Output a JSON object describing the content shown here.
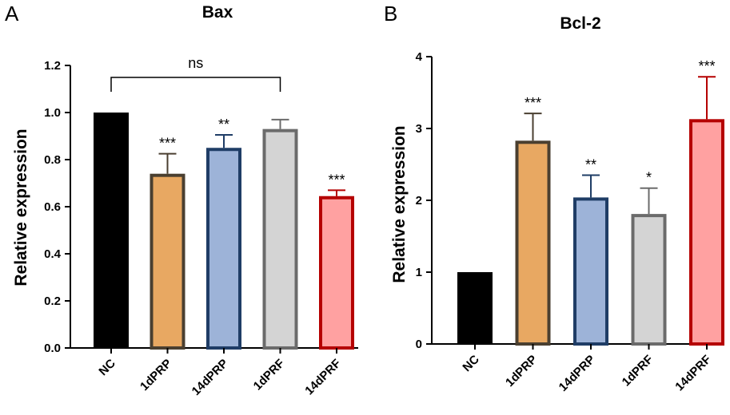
{
  "chart_data": [
    {
      "type": "bar",
      "panel": "A",
      "title": "Bax",
      "xlabel": "",
      "ylabel": "Relative expression",
      "ylim": [
        0,
        1.2
      ],
      "yticks": [
        "0.0",
        "0.2",
        "0.4",
        "0.6",
        "0.8",
        "1.0",
        "1.2"
      ],
      "categories": [
        "NC",
        "1dPRP",
        "14dPRP",
        "1dPRF",
        "14dPRF"
      ],
      "values": [
        1.0,
        0.74,
        0.85,
        0.93,
        0.645
      ],
      "errors": [
        0,
        0.085,
        0.055,
        0.04,
        0.025
      ],
      "significance": [
        "",
        "***",
        "**",
        "",
        "***"
      ],
      "comparison": {
        "from": 0,
        "to": 3,
        "label": "ns"
      },
      "colors": {
        "fill": [
          "#000000",
          "#e8a862",
          "#9db3d8",
          "#d4d4d4",
          "#ffa1a1"
        ],
        "edge": [
          "#000000",
          "#4a3f30",
          "#1f3d66",
          "#6b6b6b",
          "#b50000"
        ]
      }
    },
    {
      "type": "bar",
      "panel": "B",
      "title": "Bcl-2",
      "xlabel": "",
      "ylabel": "Relative expression",
      "ylim": [
        0,
        4
      ],
      "yticks": [
        "0",
        "1",
        "2",
        "3",
        "4"
      ],
      "categories": [
        "NC",
        "1dPRP",
        "14dPRP",
        "1dPRF",
        "14dPRF"
      ],
      "values": [
        1.0,
        2.83,
        2.04,
        1.81,
        3.13
      ],
      "errors": [
        0,
        0.38,
        0.31,
        0.36,
        0.59
      ],
      "significance": [
        "",
        "***",
        "**",
        "*",
        "***"
      ],
      "colors": {
        "fill": [
          "#000000",
          "#e8a862",
          "#9db3d8",
          "#d4d4d4",
          "#ffa1a1"
        ],
        "edge": [
          "#000000",
          "#4a3f30",
          "#1f3d66",
          "#6b6b6b",
          "#b50000"
        ]
      }
    }
  ]
}
